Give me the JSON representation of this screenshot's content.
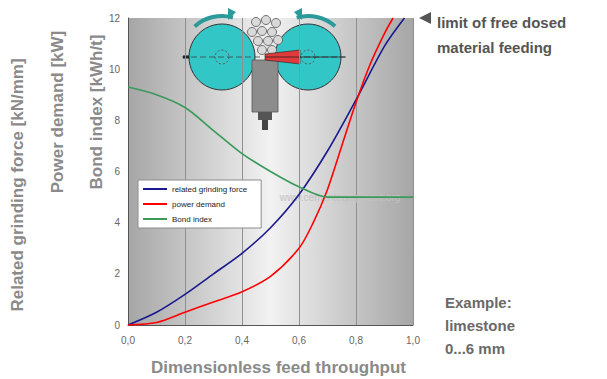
{
  "chart_data": {
    "type": "line",
    "xlabel": "Dimensionless feed throughput",
    "ylabels": [
      "Related grinding force [kN/mm]",
      "Power demand [kW]",
      "Bond index [kWh/t]"
    ],
    "xlim": [
      0,
      1
    ],
    "xticks": [
      {
        "value": 0,
        "label": "0,0"
      },
      {
        "value": 0.2,
        "label": "0,2"
      },
      {
        "value": 0.4,
        "label": "0,4"
      },
      {
        "value": 0.6,
        "label": "0,6"
      },
      {
        "value": 0.8,
        "label": "0,8"
      },
      {
        "value": 1,
        "label": "1,0"
      }
    ],
    "ylim": [
      0,
      12
    ],
    "yticks": [
      0,
      2,
      4,
      6,
      8,
      10,
      12
    ],
    "grid": "x",
    "legend": "upper left",
    "series": [
      {
        "name": "related grinding force",
        "color": "#1a1a8c",
        "x": [
          0,
          0.1,
          0.2,
          0.3,
          0.4,
          0.5,
          0.6,
          0.7,
          0.8,
          0.9,
          0.97
        ],
        "values": [
          0,
          0.5,
          1.2,
          2.0,
          2.8,
          3.8,
          5.1,
          6.8,
          8.8,
          10.9,
          12
        ]
      },
      {
        "name": "power demand",
        "color": "#ff0000",
        "x": [
          0,
          0.1,
          0.2,
          0.3,
          0.4,
          0.5,
          0.6,
          0.65,
          0.7,
          0.75,
          0.8,
          0.85,
          0.9,
          0.93
        ],
        "values": [
          0,
          0.1,
          0.5,
          0.9,
          1.3,
          1.9,
          3.0,
          4.0,
          5.3,
          7.0,
          8.7,
          10.2,
          11.4,
          12
        ]
      },
      {
        "name": "Bond index",
        "color": "#3a9a5a",
        "x": [
          0,
          0.1,
          0.2,
          0.3,
          0.4,
          0.5,
          0.6,
          0.7,
          0.8,
          0.9,
          1.0
        ],
        "values": [
          9.3,
          9.0,
          8.5,
          7.6,
          6.7,
          6.0,
          5.4,
          5.0,
          5.0,
          5.0,
          5.0
        ]
      }
    ],
    "annotations": [
      "limit of free dosed\nmaterial feeding",
      "Example:\nlimestone\n0...6 mm",
      "www.cementequipment.org"
    ]
  }
}
